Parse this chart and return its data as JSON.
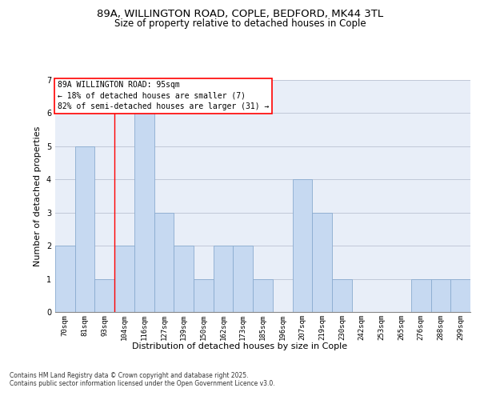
{
  "title_line1": "89A, WILLINGTON ROAD, COPLE, BEDFORD, MK44 3TL",
  "title_line2": "Size of property relative to detached houses in Cople",
  "xlabel": "Distribution of detached houses by size in Cople",
  "ylabel": "Number of detached properties",
  "categories": [
    "70sqm",
    "81sqm",
    "93sqm",
    "104sqm",
    "116sqm",
    "127sqm",
    "139sqm",
    "150sqm",
    "162sqm",
    "173sqm",
    "185sqm",
    "196sqm",
    "207sqm",
    "219sqm",
    "230sqm",
    "242sqm",
    "253sqm",
    "265sqm",
    "276sqm",
    "288sqm",
    "299sqm"
  ],
  "values": [
    2,
    5,
    1,
    2,
    6,
    3,
    2,
    1,
    2,
    2,
    1,
    0,
    4,
    3,
    1,
    0,
    0,
    0,
    1,
    1,
    1
  ],
  "bar_color": "#c6d9f1",
  "bar_edge_color": "#8aabcf",
  "red_line_x": 2.5,
  "annotation_text": "89A WILLINGTON ROAD: 95sqm\n← 18% of detached houses are smaller (7)\n82% of semi-detached houses are larger (31) →",
  "annotation_box_color": "white",
  "annotation_box_edge": "red",
  "ylim": [
    0,
    7
  ],
  "yticks": [
    0,
    1,
    2,
    3,
    4,
    5,
    6,
    7
  ],
  "grid_color": "#c0c8d8",
  "background_color": "#e8eef8",
  "footer_line1": "Contains HM Land Registry data © Crown copyright and database right 2025.",
  "footer_line2": "Contains public sector information licensed under the Open Government Licence v3.0.",
  "title_fontsize": 9.5,
  "subtitle_fontsize": 8.5,
  "tick_fontsize": 6.5,
  "ylabel_fontsize": 8,
  "xlabel_fontsize": 8,
  "annotation_fontsize": 7,
  "footer_fontsize": 5.5
}
